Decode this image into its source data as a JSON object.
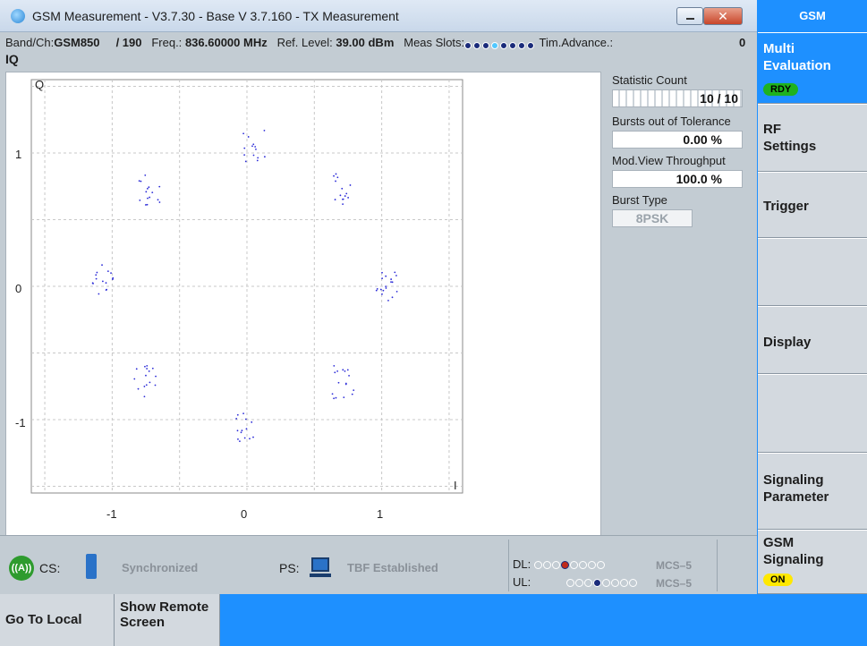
{
  "window": {
    "title": "GSM Measurement  - V3.7.30 - Base V 3.7.160 - TX Measurement",
    "close_label": "✕"
  },
  "info": {
    "band_label": "Band/Ch:",
    "band_value": "GSM850",
    "channel": "/  190",
    "freq_label": "Freq.:",
    "freq_value": "836.60000 MHz",
    "ref_label": "Ref. Level:",
    "ref_value": "39.00 dBm",
    "slots_label": "Meas Slots:",
    "tim_label": "Tim.Advance.:",
    "tim_value": "0"
  },
  "plot": {
    "title": "IQ",
    "y_axis_letter": "Q",
    "x_axis_letter": "I",
    "y_ticks": [
      "1",
      "0",
      "-1"
    ],
    "x_ticks": [
      "-1",
      "0",
      "1"
    ]
  },
  "stats": {
    "count_label": "Statistic Count",
    "count_value": "10 / 10",
    "tolerance_label": "Bursts out of Tolerance",
    "tolerance_value": "0.00  %",
    "throughput_label": "Mod.View Throughput",
    "throughput_value": "100.0  %",
    "burst_label": "Burst Type",
    "burst_value": "8PSK"
  },
  "status": {
    "cs_icon": "antenna-icon",
    "cs_label": "CS:",
    "cs_text": "Synchronized",
    "ps_label": "PS:",
    "ps_text": "TBF Established",
    "dl_label": "DL:",
    "ul_label": "UL:",
    "dl_mcs": "MCS–5",
    "ul_mcs": "MCS–5"
  },
  "softkeys": {
    "header": "GSM",
    "multi_eval": "Multi\nEvaluation",
    "multi_badge": "RDY",
    "rf_settings": "RF\nSettings",
    "trigger": "Trigger",
    "display": "Display",
    "signaling_param": "Signaling\nParameter",
    "gsm_signaling": "GSM\nSignaling",
    "gsm_badge": "ON"
  },
  "bottom": {
    "go_local": "Go To Local",
    "show_remote": "Show Remote\nScreen"
  },
  "chart_data": {
    "type": "scatter",
    "title": "IQ",
    "xlabel": "I",
    "ylabel": "Q",
    "xlim": [
      -1.6,
      1.6
    ],
    "ylim": [
      -1.55,
      1.55
    ],
    "grid": true,
    "point_color": "#2b2bd8",
    "clusters": [
      {
        "center": [
          0.05,
          1.05
        ],
        "spread": 0.09,
        "n": 14
      },
      {
        "center": [
          0.72,
          0.72
        ],
        "spread": 0.09,
        "n": 14
      },
      {
        "center": [
          1.04,
          0.0
        ],
        "spread": 0.08,
        "n": 18
      },
      {
        "center": [
          0.72,
          -0.72
        ],
        "spread": 0.09,
        "n": 16
      },
      {
        "center": [
          0.0,
          -1.05
        ],
        "spread": 0.08,
        "n": 14
      },
      {
        "center": [
          -0.75,
          -0.72
        ],
        "spread": 0.09,
        "n": 15
      },
      {
        "center": [
          -1.07,
          0.05
        ],
        "spread": 0.08,
        "n": 15
      },
      {
        "center": [
          -0.72,
          0.73
        ],
        "spread": 0.09,
        "n": 15
      }
    ]
  },
  "colors": {
    "accent": "#1e90ff",
    "panel": "#c3ccd3",
    "badge_ready": "#1fb21f",
    "badge_on": "#ffe800"
  }
}
